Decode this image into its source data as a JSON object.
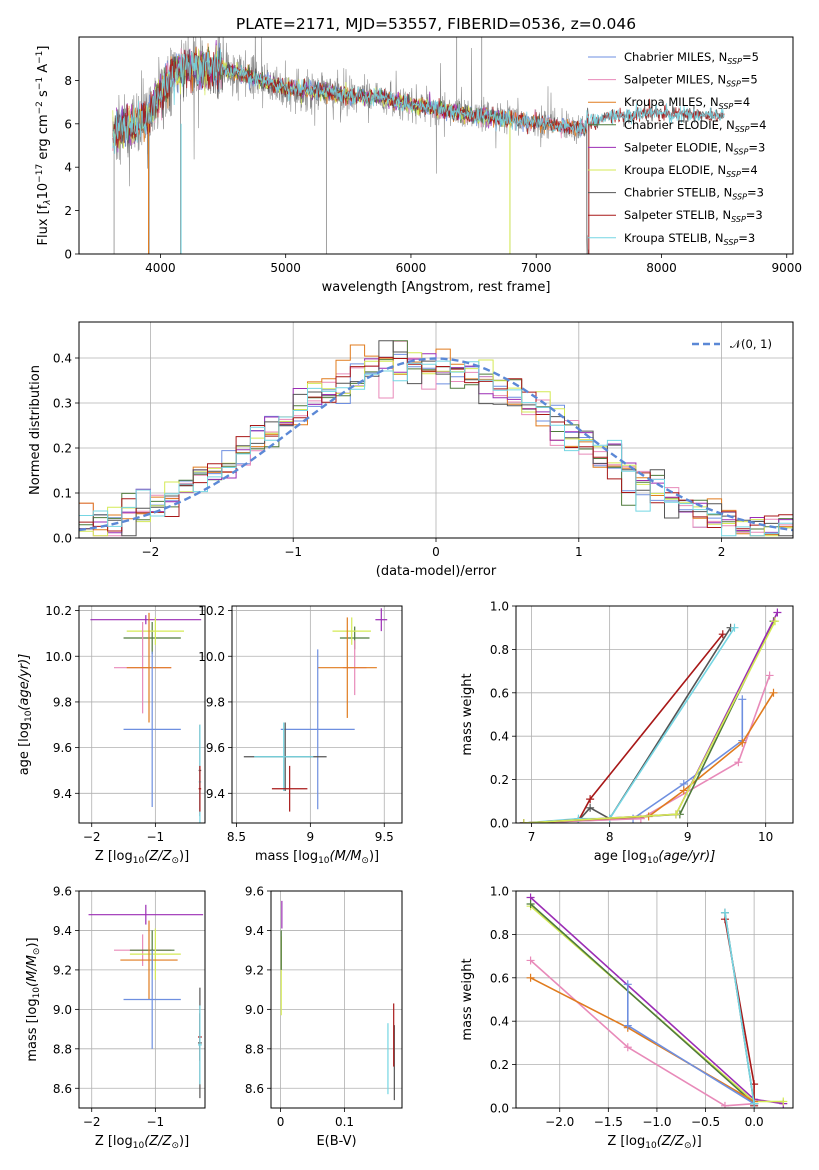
{
  "figure": {
    "title": "PLATE=2171, MJD=53557, FIBERID=0536, z=0.046",
    "colors": {
      "Chabrier MILES": "#6e8fe0",
      "Salpeter MILES": "#e88ab9",
      "Kroupa MILES": "#e07b1e",
      "Chabrier ELODIE": "#4f7a3b",
      "Salpeter ELODIE": "#9b2db5",
      "Kroupa ELODIE": "#d4ea55",
      "Chabrier STELIB": "#555555",
      "Salpeter STELIB": "#a81818",
      "Kroupa STELIB": "#75d6e3",
      "data": "#8a8a8a",
      "gaussian": "#5b88d6"
    }
  },
  "chart_data": [
    {
      "id": "spectrum",
      "type": "line",
      "xlabel": "wavelength [Angstrom, rest frame]",
      "ylabel_text": "Flux [f",
      "ylabel_sub": "λ",
      "ylabel_mid": "10",
      "ylabel_sup1": "−17",
      "ylabel_rest": " erg cm",
      "ylabel_sup2": "−2",
      "ylabel_rest2": " s",
      "ylabel_sup3": "−1",
      "ylabel_rest3": " A",
      "ylabel_sup4": "−1",
      "ylabel_end": "]",
      "xlim": [
        3350,
        9050
      ],
      "ylim": [
        0,
        10
      ],
      "xticks": [
        4000,
        5000,
        6000,
        7000,
        8000,
        9000
      ],
      "yticks": [
        0,
        2,
        4,
        6,
        8
      ],
      "legend_position": "top-right",
      "legend": [
        {
          "label": "Chabrier MILES, N",
          "sub": "SSP",
          "tail": "=5"
        },
        {
          "label": "Salpeter MILES, N",
          "sub": "SSP",
          "tail": "=5"
        },
        {
          "label": "Kroupa MILES, N",
          "sub": "SSP",
          "tail": "=4"
        },
        {
          "label": "Chabrier ELODIE, N",
          "sub": "SSP",
          "tail": "=4"
        },
        {
          "label": "Salpeter ELODIE, N",
          "sub": "SSP",
          "tail": "=3"
        },
        {
          "label": "Kroupa ELODIE, N",
          "sub": "SSP",
          "tail": "=4"
        },
        {
          "label": "Chabrier STELIB, N",
          "sub": "SSP",
          "tail": "=3"
        },
        {
          "label": "Salpeter STELIB, N",
          "sub": "SSP",
          "tail": "=3"
        },
        {
          "label": "Kroupa STELIB, N",
          "sub": "SSP",
          "tail": "=3"
        }
      ],
      "continuum": [
        [
          3620,
          5.6
        ],
        [
          3700,
          5.8
        ],
        [
          3800,
          6.0
        ],
        [
          3900,
          6.2
        ],
        [
          4000,
          7.4
        ],
        [
          4100,
          8.3
        ],
        [
          4200,
          8.6
        ],
        [
          4300,
          8.5
        ],
        [
          4500,
          8.5
        ],
        [
          4700,
          8.2
        ],
        [
          5000,
          7.6
        ],
        [
          5300,
          7.5
        ],
        [
          5500,
          7.3
        ],
        [
          5800,
          7.2
        ],
        [
          6000,
          6.9
        ],
        [
          6300,
          6.6
        ],
        [
          6500,
          6.4
        ],
        [
          6800,
          6.2
        ],
        [
          7000,
          6.05
        ],
        [
          7200,
          5.9
        ],
        [
          7400,
          5.8
        ]
      ],
      "model_continuum": [
        [
          7420,
          6.0
        ],
        [
          7600,
          6.35
        ],
        [
          7800,
          6.45
        ],
        [
          8000,
          6.5
        ],
        [
          8200,
          6.45
        ]
      ]
    },
    {
      "id": "residuals",
      "type": "histogram",
      "xlabel": "(data-model)/error",
      "ylabel": "Normed distribution",
      "xlim": [
        -2.5,
        2.5
      ],
      "ylim": [
        0,
        0.48
      ],
      "xticks": [
        -2,
        -1,
        0,
        1,
        2
      ],
      "yticks": [
        0.0,
        0.1,
        0.2,
        0.3,
        0.4
      ],
      "bin_width": 0.1,
      "legend_position": "top-right",
      "gaussian_label": "𝒩(0, 1)"
    },
    {
      "id": "age_vs_Z",
      "type": "scatter",
      "xlabel": "Z [log",
      "xlabel_sub": "10",
      "xlabel_end": "(Z/Z",
      "xlabel_sun": "⊙",
      "xlabel_close": ")]",
      "ylabel": "age  [log",
      "ylabel_sub": "10",
      "ylabel_end": "(age/yr)]",
      "xlim": [
        -2.2,
        -0.22
      ],
      "ylim": [
        9.27,
        10.22
      ],
      "xticks": [
        -2,
        -1
      ],
      "yticks": [
        9.4,
        9.6,
        9.8,
        10.0,
        10.2
      ],
      "errorbars": [
        {
          "model": "Salpeter ELODIE",
          "x": -1.15,
          "xerr": 0.87,
          "y": 10.16,
          "yerr": 0.02
        },
        {
          "model": "Chabrier ELODIE",
          "x": -1.05,
          "xerr": 0.45,
          "y": 10.08,
          "yerr": 0.07
        },
        {
          "model": "Kroupa ELODIE",
          "x": -1.0,
          "xerr": 0.45,
          "y": 10.11,
          "yerr": 0.06
        },
        {
          "model": "Salpeter MILES",
          "x": -1.2,
          "xerr": 0.45,
          "y": 9.95,
          "yerr": 0.2
        },
        {
          "model": "Kroupa MILES",
          "x": -1.1,
          "xerr": 0.35,
          "y": 9.95,
          "yerr": 0.24
        },
        {
          "model": "Chabrier MILES",
          "x": -1.05,
          "xerr": 0.45,
          "y": 9.68,
          "yerr": 0.34
        },
        {
          "model": "Chabrier STELIB",
          "x": -0.3,
          "xerr": 0.02,
          "y": 9.5,
          "yerr": 0.2
        },
        {
          "model": "Kroupa STELIB",
          "x": -0.3,
          "xerr": 0.02,
          "y": 9.45,
          "yerr": 0.25
        },
        {
          "model": "Salpeter STELIB",
          "x": -0.3,
          "xerr": 0.02,
          "y": 9.42,
          "yerr": 0.1
        }
      ]
    },
    {
      "id": "age_vs_mass",
      "type": "scatter",
      "xlabel": "mass [log",
      "xlabel_sub": "10",
      "xlabel_end": "(M/M",
      "xlabel_sun": "⊙",
      "xlabel_close": ")]",
      "xlim": [
        8.47,
        9.62
      ],
      "ylim": [
        9.27,
        10.22
      ],
      "xticks": [
        8.5,
        9.0,
        9.5
      ],
      "yticks": [
        9.4,
        9.6,
        9.8,
        10.0,
        10.2
      ],
      "errorbars": [
        {
          "model": "Salpeter ELODIE",
          "x": 9.48,
          "xerr": 0.04,
          "y": 10.16,
          "yerr": 0.05
        },
        {
          "model": "Chabrier ELODIE",
          "x": 9.3,
          "xerr": 0.1,
          "y": 10.08,
          "yerr": 0.05
        },
        {
          "model": "Kroupa ELODIE",
          "x": 9.28,
          "xerr": 0.13,
          "y": 10.11,
          "yerr": 0.06
        },
        {
          "model": "Salpeter MILES",
          "x": 9.3,
          "xerr": 0.08,
          "y": 9.95,
          "yerr": 0.12
        },
        {
          "model": "Kroupa MILES",
          "x": 9.25,
          "xerr": 0.2,
          "y": 9.95,
          "yerr": 0.22
        },
        {
          "model": "Chabrier MILES",
          "x": 9.05,
          "xerr": 0.25,
          "y": 9.68,
          "yerr": 0.35
        },
        {
          "model": "Chabrier STELIB",
          "x": 8.83,
          "xerr": 0.28,
          "y": 9.56,
          "yerr": 0.15
        },
        {
          "model": "Kroupa STELIB",
          "x": 8.82,
          "xerr": 0.2,
          "y": 9.56,
          "yerr": 0.15
        },
        {
          "model": "Salpeter STELIB",
          "x": 8.86,
          "xerr": 0.12,
          "y": 9.42,
          "yerr": 0.1
        }
      ]
    },
    {
      "id": "weight_vs_age",
      "type": "line",
      "xlabel": "age  [log",
      "xlabel_sub": "10",
      "xlabel_end": "(age/yr)]",
      "ylabel": "mass weight",
      "xlim": [
        6.8,
        10.35
      ],
      "ylim": [
        0,
        1.0
      ],
      "xticks": [
        7,
        8,
        9,
        10
      ],
      "yticks": [
        0.0,
        0.2,
        0.4,
        0.6,
        0.8,
        1.0
      ],
      "series": [
        {
          "model": "Salpeter STELIB",
          "points": [
            [
              7.6,
              0.01
            ],
            [
              7.75,
              0.11
            ],
            [
              9.45,
              0.87
            ]
          ]
        },
        {
          "model": "Chabrier STELIB",
          "points": [
            [
              6.9,
              0.0
            ],
            [
              7.6,
              0.01
            ],
            [
              7.75,
              0.07
            ],
            [
              8.0,
              0.02
            ],
            [
              9.55,
              0.9
            ]
          ]
        },
        {
          "model": "Kroupa STELIB",
          "points": [
            [
              6.9,
              0.0
            ],
            [
              7.6,
              0.02
            ],
            [
              8.0,
              0.02
            ],
            [
              9.6,
              0.9
            ]
          ]
        },
        {
          "model": "Chabrier MILES",
          "points": [
            [
              6.9,
              0.0
            ],
            [
              8.3,
              0.02
            ],
            [
              8.95,
              0.18
            ],
            [
              9.7,
              0.38
            ],
            [
              9.7,
              0.57
            ]
          ]
        },
        {
          "model": "Salpeter MILES",
          "points": [
            [
              6.9,
              0.0
            ],
            [
              8.4,
              0.02
            ],
            [
              9.65,
              0.28
            ],
            [
              10.05,
              0.68
            ]
          ]
        },
        {
          "model": "Kroupa MILES",
          "points": [
            [
              6.9,
              0.0
            ],
            [
              8.5,
              0.03
            ],
            [
              8.95,
              0.15
            ],
            [
              9.7,
              0.37
            ],
            [
              10.1,
              0.6
            ]
          ]
        },
        {
          "model": "Chabrier ELODIE",
          "points": [
            [
              6.9,
              0.0
            ],
            [
              8.9,
              0.04
            ],
            [
              10.1,
              0.93
            ]
          ]
        },
        {
          "model": "Salpeter ELODIE",
          "points": [
            [
              6.9,
              0.0
            ],
            [
              8.85,
              0.04
            ],
            [
              10.15,
              0.97
            ]
          ]
        },
        {
          "model": "Kroupa ELODIE",
          "points": [
            [
              6.9,
              0.0
            ],
            [
              8.85,
              0.04
            ],
            [
              10.12,
              0.93
            ]
          ]
        }
      ]
    },
    {
      "id": "mass_vs_Z",
      "type": "scatter",
      "xlabel": "Z [log",
      "xlabel_sub": "10",
      "xlabel_end": "(Z/Z",
      "xlabel_sun": "⊙",
      "xlabel_close": ")]",
      "ylabel": "mass [log",
      "ylabel_sub": "10",
      "ylabel_end": "(M/M",
      "ylabel_sun": "⊙",
      "ylabel_close": ")]",
      "xlim": [
        -2.2,
        -0.22
      ],
      "ylim": [
        8.5,
        9.6
      ],
      "xticks": [
        -2,
        -1
      ],
      "yticks": [
        8.6,
        8.8,
        9.0,
        9.2,
        9.4,
        9.6
      ],
      "errorbars": [
        {
          "model": "Salpeter ELODIE",
          "x": -1.15,
          "xerr": 0.9,
          "y": 9.48,
          "yerr": 0.05
        },
        {
          "model": "Salpeter MILES",
          "x": -1.2,
          "xerr": 0.45,
          "y": 9.3,
          "yerr": 0.08
        },
        {
          "model": "Chabrier ELODIE",
          "x": -1.05,
          "xerr": 0.35,
          "y": 9.3,
          "yerr": 0.1
        },
        {
          "model": "Kroupa ELODIE",
          "x": -1.0,
          "xerr": 0.4,
          "y": 9.28,
          "yerr": 0.13
        },
        {
          "model": "Kroupa MILES",
          "x": -1.1,
          "xerr": 0.45,
          "y": 9.25,
          "yerr": 0.2
        },
        {
          "model": "Chabrier MILES",
          "x": -1.05,
          "xerr": 0.45,
          "y": 9.05,
          "yerr": 0.25
        },
        {
          "model": "Salpeter STELIB",
          "x": -0.3,
          "xerr": 0.03,
          "y": 8.86,
          "yerr": 0.12
        },
        {
          "model": "Chabrier STELIB",
          "x": -0.3,
          "xerr": 0.03,
          "y": 8.83,
          "yerr": 0.28
        },
        {
          "model": "Kroupa STELIB",
          "x": -0.3,
          "xerr": 0.03,
          "y": 8.82,
          "yerr": 0.2
        }
      ]
    },
    {
      "id": "mass_vs_ebv",
      "type": "scatter",
      "xlabel": "E(B-V)",
      "xlim": [
        -0.015,
        0.19
      ],
      "ylim": [
        8.5,
        9.6
      ],
      "xticks": [
        0.0,
        0.1
      ],
      "yticks": [
        8.6,
        8.8,
        9.0,
        9.2,
        9.4,
        9.6
      ],
      "errorbars": [
        {
          "model": "Salpeter ELODIE",
          "x": 0.002,
          "y": 9.48,
          "yerr": 0.07
        },
        {
          "model": "Kroupa ELODIE",
          "x": 0.001,
          "y": 9.17,
          "yerr": 0.2
        },
        {
          "model": "Chabrier ELODIE",
          "x": 0.001,
          "y": 9.3,
          "yerr": 0.1
        },
        {
          "model": "Kroupa STELIB",
          "x": 0.168,
          "y": 8.75,
          "yerr": 0.18
        },
        {
          "model": "Chabrier STELIB",
          "x": 0.178,
          "y": 8.73,
          "yerr": 0.19
        },
        {
          "model": "Salpeter STELIB",
          "x": 0.177,
          "y": 8.87,
          "yerr": 0.16
        }
      ]
    },
    {
      "id": "weight_vs_Z",
      "type": "line",
      "xlabel": "Z [log",
      "xlabel_sub": "10",
      "xlabel_end": "(Z/Z",
      "xlabel_sun": "⊙",
      "xlabel_close": ")]",
      "ylabel": "mass weight",
      "xlim": [
        -2.45,
        0.4
      ],
      "ylim": [
        0,
        1.0
      ],
      "xticks": [
        -2.0,
        -1.5,
        -1.0,
        -0.5,
        0.0
      ],
      "yticks": [
        0.0,
        0.2,
        0.4,
        0.6,
        0.8,
        1.0
      ],
      "series": [
        {
          "model": "Salpeter ELODIE",
          "points": [
            [
              -2.3,
              0.97
            ],
            [
              0.0,
              0.04
            ],
            [
              0.3,
              0.02
            ]
          ]
        },
        {
          "model": "Kroupa ELODIE",
          "points": [
            [
              -2.3,
              0.93
            ],
            [
              0.0,
              0.03
            ],
            [
              0.3,
              0.03
            ]
          ]
        },
        {
          "model": "Chabrier ELODIE",
          "points": [
            [
              -2.3,
              0.94
            ],
            [
              0.0,
              0.02
            ]
          ]
        },
        {
          "model": "Salpeter MILES",
          "points": [
            [
              -2.3,
              0.68
            ],
            [
              -1.3,
              0.28
            ],
            [
              -0.3,
              0.01
            ],
            [
              0.0,
              0.02
            ]
          ]
        },
        {
          "model": "Kroupa MILES",
          "points": [
            [
              -2.3,
              0.6
            ],
            [
              -1.3,
              0.37
            ],
            [
              0.0,
              0.03
            ]
          ]
        },
        {
          "model": "Chabrier MILES",
          "points": [
            [
              -1.3,
              0.57
            ],
            [
              -1.3,
              0.38
            ],
            [
              0.0,
              0.02
            ]
          ]
        },
        {
          "model": "Salpeter STELIB",
          "points": [
            [
              -0.3,
              0.87
            ],
            [
              0.0,
              0.11
            ],
            [
              0.0,
              0.01
            ]
          ]
        },
        {
          "model": "Chabrier STELIB",
          "points": [
            [
              -0.3,
              0.9
            ],
            [
              0.0,
              0.02
            ]
          ]
        },
        {
          "model": "Kroupa STELIB",
          "points": [
            [
              -0.3,
              0.9
            ],
            [
              0.0,
              0.02
            ]
          ]
        }
      ]
    }
  ]
}
